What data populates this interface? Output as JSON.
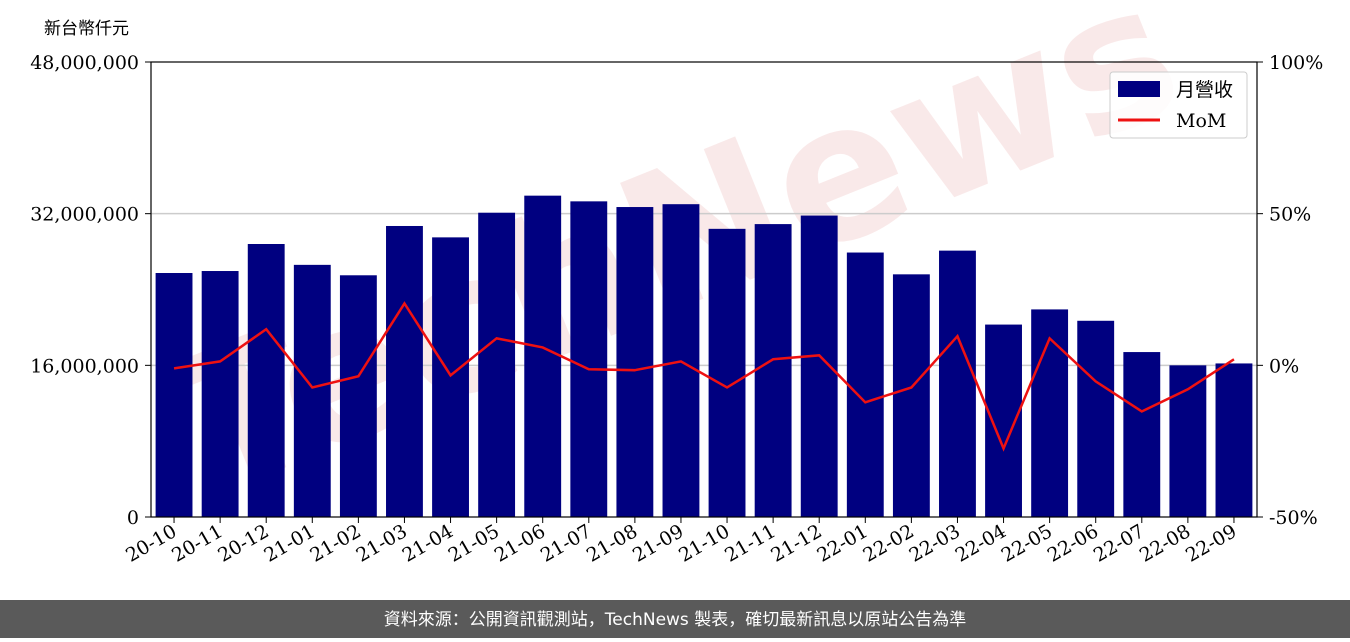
{
  "chart_data": {
    "type": "bar-line",
    "y_unit_label": "新台幣仟元",
    "watermark": "TechNews",
    "footer": "資料來源：公開資訊觀測站，TechNews 製表，確切最新訊息以原站公告為準",
    "categories": [
      "20-10",
      "20-11",
      "20-12",
      "21-01",
      "21-02",
      "21-03",
      "21-04",
      "21-05",
      "21-06",
      "21-07",
      "21-08",
      "21-09",
      "21-10",
      "21-11",
      "21-12",
      "22-01",
      "22-02",
      "22-03",
      "22-04",
      "22-05",
      "22-06",
      "22-07",
      "22-08",
      "22-09"
    ],
    "series": [
      {
        "name": "月營收",
        "color": "#000080",
        "values": [
          25740000,
          25950000,
          28800000,
          26600000,
          25500000,
          30700000,
          29500000,
          32100000,
          33900000,
          33300000,
          32700000,
          33000000,
          30400000,
          30900000,
          31800000,
          27900000,
          25600000,
          28100000,
          20300000,
          21900000,
          20700000,
          17400000,
          16000000,
          16200000
        ]
      },
      {
        "name": "MoM",
        "color": "#ee1111",
        "axis": "y2",
        "values": [
          -1.0,
          1.3,
          11.9,
          -7.3,
          -3.6,
          20.4,
          -3.3,
          8.9,
          5.9,
          -1.3,
          -1.6,
          1.3,
          -7.3,
          2.0,
          3.3,
          -12.2,
          -7.3,
          9.6,
          -27.4,
          8.9,
          -5.3,
          -15.2,
          -7.9,
          2.0
        ]
      }
    ],
    "ylim": [
      0,
      48000000
    ],
    "yticks": [
      0,
      {
        "value": 16000000,
        "label": "16,000,000"
      },
      {
        "value": 32000000,
        "label": "32,000,000"
      },
      {
        "value": 48000000,
        "label": "48,000,000"
      }
    ],
    "y2lim": [
      -50,
      100
    ],
    "y2ticks": [
      {
        "value": -50,
        "label": "-50%"
      },
      {
        "value": 0,
        "label": "0%"
      },
      {
        "value": 50,
        "label": "50%"
      },
      {
        "value": 100,
        "label": "100%"
      }
    ],
    "grid": true,
    "legend": "upper right"
  }
}
